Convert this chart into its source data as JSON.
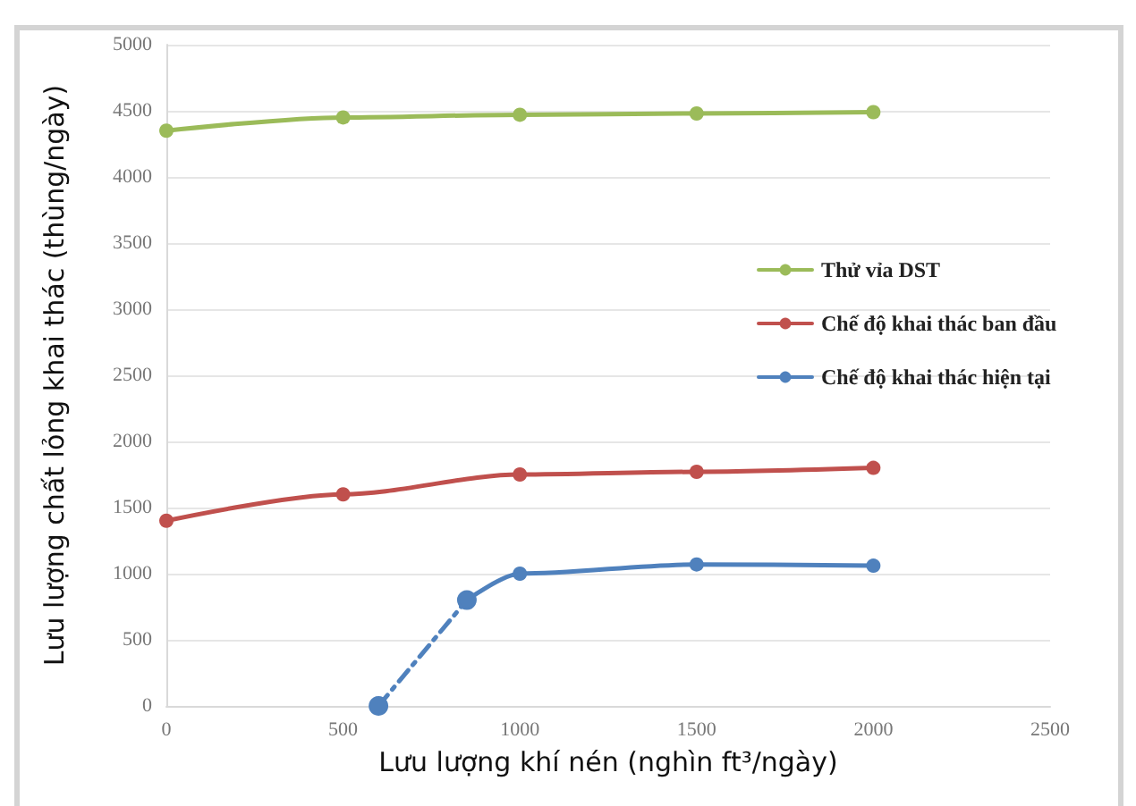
{
  "chart_data": {
    "type": "line",
    "xlabel": "Lưu lượng khí nén (nghìn ft³/ngày)",
    "ylabel": "Lưu lượng chất lỏng khai thác (thùng/ngày)",
    "xlim": [
      0,
      2500
    ],
    "xticks": [
      0,
      500,
      1000,
      1500,
      2000,
      2500
    ],
    "ylim": [
      0,
      5000
    ],
    "yticks": [
      0,
      500,
      1000,
      1500,
      2000,
      2500,
      3000,
      3500,
      4000,
      4500,
      5000
    ],
    "grid": "y",
    "legend": "right",
    "marker": "circle",
    "line_style": "solid",
    "series": [
      {
        "name": "Thử vỉa DST",
        "color": "#9bbb59",
        "x": [
          0,
          500,
          1000,
          1500,
          2000
        ],
        "values": [
          4350,
          4450,
          4470,
          4480,
          4490
        ]
      },
      {
        "name": "Chế độ khai thác ban đầu",
        "color": "#c0504d",
        "x": [
          0,
          500,
          1000,
          1500,
          2000
        ],
        "values": [
          1400,
          1600,
          1750,
          1770,
          1800
        ]
      },
      {
        "color": "#4f81bd",
        "x": [
          600,
          850
        ],
        "values": [
          0,
          800
        ],
        "line_style": "dashed"
      },
      {
        "name": "Chế độ khai thác hiện tại",
        "color": "#4f81bd",
        "x": [
          850,
          1000,
          1500,
          2000
        ],
        "values": [
          800,
          1000,
          1070,
          1060
        ]
      }
    ]
  }
}
